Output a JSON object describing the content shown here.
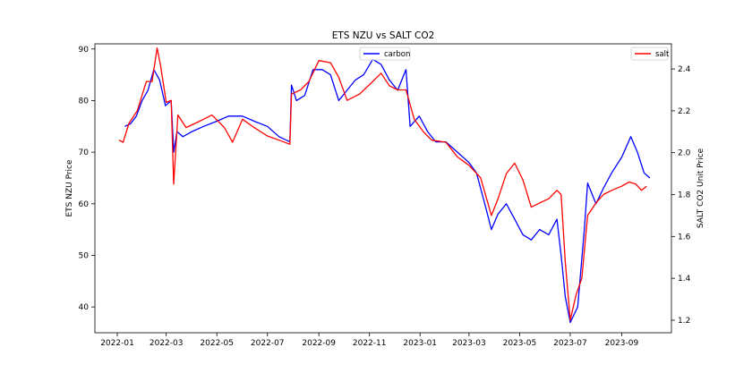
{
  "chart_data": {
    "type": "line",
    "title": "ETS NZU vs SALT CO2",
    "xlabel": "",
    "ylabel_left": "ETS NZU Price",
    "ylabel_right": "SALT CO2 Unit Price",
    "x_ticks": [
      "2022-01",
      "2022-03",
      "2022-05",
      "2022-07",
      "2022-09",
      "2022-11",
      "2023-01",
      "2023-03",
      "2023-05",
      "2023-07",
      "2023-09"
    ],
    "y_left_ticks": [
      40,
      50,
      60,
      70,
      80,
      90
    ],
    "y_right_ticks": [
      1.2,
      1.4,
      1.6,
      1.8,
      2.0,
      2.2,
      2.4
    ],
    "xlim": [
      "2021-12-05",
      "2023-10-31"
    ],
    "ylim_left": [
      35,
      91
    ],
    "ylim_right": [
      1.14,
      2.52
    ],
    "grid": false,
    "legends": [
      {
        "position": "top-center",
        "entries": [
          "carbon"
        ]
      },
      {
        "position": "top-right",
        "entries": [
          "salt"
        ]
      }
    ],
    "series": [
      {
        "name": "carbon",
        "axis": "left",
        "color": "#0000ff",
        "points": [
          [
            "2022-01-10",
            75
          ],
          [
            "2022-01-17",
            75.5
          ],
          [
            "2022-01-24",
            77
          ],
          [
            "2022-01-31",
            80
          ],
          [
            "2022-02-07",
            82
          ],
          [
            "2022-02-14",
            86
          ],
          [
            "2022-02-21",
            84
          ],
          [
            "2022-02-28",
            79
          ],
          [
            "2022-03-07",
            80
          ],
          [
            "2022-03-10",
            70
          ],
          [
            "2022-03-14",
            74
          ],
          [
            "2022-03-21",
            73
          ],
          [
            "2022-04-01",
            74
          ],
          [
            "2022-04-15",
            75
          ],
          [
            "2022-05-01",
            76
          ],
          [
            "2022-05-15",
            77
          ],
          [
            "2022-06-01",
            77
          ],
          [
            "2022-06-15",
            76
          ],
          [
            "2022-07-01",
            75
          ],
          [
            "2022-07-15",
            73
          ],
          [
            "2022-07-28",
            72
          ],
          [
            "2022-07-30",
            83
          ],
          [
            "2022-08-05",
            80
          ],
          [
            "2022-08-15",
            81
          ],
          [
            "2022-08-25",
            86
          ],
          [
            "2022-09-05",
            86
          ],
          [
            "2022-09-15",
            85
          ],
          [
            "2022-09-25",
            80
          ],
          [
            "2022-10-05",
            82
          ],
          [
            "2022-10-15",
            84
          ],
          [
            "2022-10-25",
            85
          ],
          [
            "2022-11-05",
            88
          ],
          [
            "2022-11-15",
            87
          ],
          [
            "2022-11-25",
            84
          ],
          [
            "2022-12-05",
            82
          ],
          [
            "2022-12-15",
            86
          ],
          [
            "2022-12-20",
            75
          ],
          [
            "2022-12-31",
            77
          ],
          [
            "2023-01-10",
            74
          ],
          [
            "2023-01-20",
            72
          ],
          [
            "2023-02-01",
            72
          ],
          [
            "2023-02-15",
            70
          ],
          [
            "2023-03-01",
            68
          ],
          [
            "2023-03-10",
            66
          ],
          [
            "2023-03-20",
            60
          ],
          [
            "2023-03-28",
            55
          ],
          [
            "2023-04-05",
            58
          ],
          [
            "2023-04-15",
            60
          ],
          [
            "2023-04-25",
            57
          ],
          [
            "2023-05-05",
            54
          ],
          [
            "2023-05-15",
            53
          ],
          [
            "2023-05-25",
            55
          ],
          [
            "2023-06-05",
            54
          ],
          [
            "2023-06-15",
            57
          ],
          [
            "2023-06-20",
            50
          ],
          [
            "2023-06-25",
            42
          ],
          [
            "2023-07-01",
            37
          ],
          [
            "2023-07-10",
            40
          ],
          [
            "2023-07-18",
            55
          ],
          [
            "2023-07-22",
            64
          ],
          [
            "2023-08-01",
            60
          ],
          [
            "2023-08-10",
            63
          ],
          [
            "2023-08-20",
            66
          ],
          [
            "2023-09-01",
            69
          ],
          [
            "2023-09-12",
            73
          ],
          [
            "2023-09-20",
            70
          ],
          [
            "2023-09-28",
            66
          ],
          [
            "2023-10-05",
            65
          ]
        ]
      },
      {
        "name": "salt",
        "axis": "right",
        "color": "#ff0000",
        "points": [
          [
            "2022-01-03",
            2.06
          ],
          [
            "2022-01-08",
            2.05
          ],
          [
            "2022-01-15",
            2.14
          ],
          [
            "2022-01-25",
            2.2
          ],
          [
            "2022-02-05",
            2.34
          ],
          [
            "2022-02-12",
            2.34
          ],
          [
            "2022-02-18",
            2.5
          ],
          [
            "2022-02-22",
            2.42
          ],
          [
            "2022-03-01",
            2.24
          ],
          [
            "2022-03-07",
            2.25
          ],
          [
            "2022-03-10",
            1.85
          ],
          [
            "2022-03-15",
            2.18
          ],
          [
            "2022-03-25",
            2.12
          ],
          [
            "2022-04-10",
            2.15
          ],
          [
            "2022-04-25",
            2.18
          ],
          [
            "2022-05-10",
            2.12
          ],
          [
            "2022-05-20",
            2.05
          ],
          [
            "2022-06-01",
            2.16
          ],
          [
            "2022-06-15",
            2.12
          ],
          [
            "2022-07-01",
            2.08
          ],
          [
            "2022-07-15",
            2.06
          ],
          [
            "2022-07-28",
            2.04
          ],
          [
            "2022-07-30",
            2.28
          ],
          [
            "2022-08-10",
            2.3
          ],
          [
            "2022-08-20",
            2.34
          ],
          [
            "2022-09-01",
            2.44
          ],
          [
            "2022-09-15",
            2.43
          ],
          [
            "2022-09-25",
            2.36
          ],
          [
            "2022-10-05",
            2.25
          ],
          [
            "2022-10-20",
            2.28
          ],
          [
            "2022-11-05",
            2.34
          ],
          [
            "2022-11-15",
            2.38
          ],
          [
            "2022-11-25",
            2.32
          ],
          [
            "2022-12-05",
            2.3
          ],
          [
            "2022-12-15",
            2.3
          ],
          [
            "2022-12-25",
            2.16
          ],
          [
            "2023-01-05",
            2.1
          ],
          [
            "2023-01-15",
            2.06
          ],
          [
            "2023-02-01",
            2.05
          ],
          [
            "2023-02-15",
            1.98
          ],
          [
            "2023-03-01",
            1.94
          ],
          [
            "2023-03-15",
            1.88
          ],
          [
            "2023-03-28",
            1.7
          ],
          [
            "2023-04-05",
            1.78
          ],
          [
            "2023-04-15",
            1.9
          ],
          [
            "2023-04-25",
            1.95
          ],
          [
            "2023-05-05",
            1.87
          ],
          [
            "2023-05-15",
            1.74
          ],
          [
            "2023-05-25",
            1.76
          ],
          [
            "2023-06-05",
            1.78
          ],
          [
            "2023-06-15",
            1.82
          ],
          [
            "2023-06-20",
            1.8
          ],
          [
            "2023-06-25",
            1.48
          ],
          [
            "2023-07-01",
            1.2
          ],
          [
            "2023-07-08",
            1.32
          ],
          [
            "2023-07-15",
            1.4
          ],
          [
            "2023-07-22",
            1.7
          ],
          [
            "2023-08-01",
            1.76
          ],
          [
            "2023-08-10",
            1.8
          ],
          [
            "2023-08-20",
            1.82
          ],
          [
            "2023-09-01",
            1.84
          ],
          [
            "2023-09-10",
            1.86
          ],
          [
            "2023-09-18",
            1.85
          ],
          [
            "2023-09-25",
            1.82
          ],
          [
            "2023-10-01",
            1.84
          ]
        ]
      }
    ]
  }
}
